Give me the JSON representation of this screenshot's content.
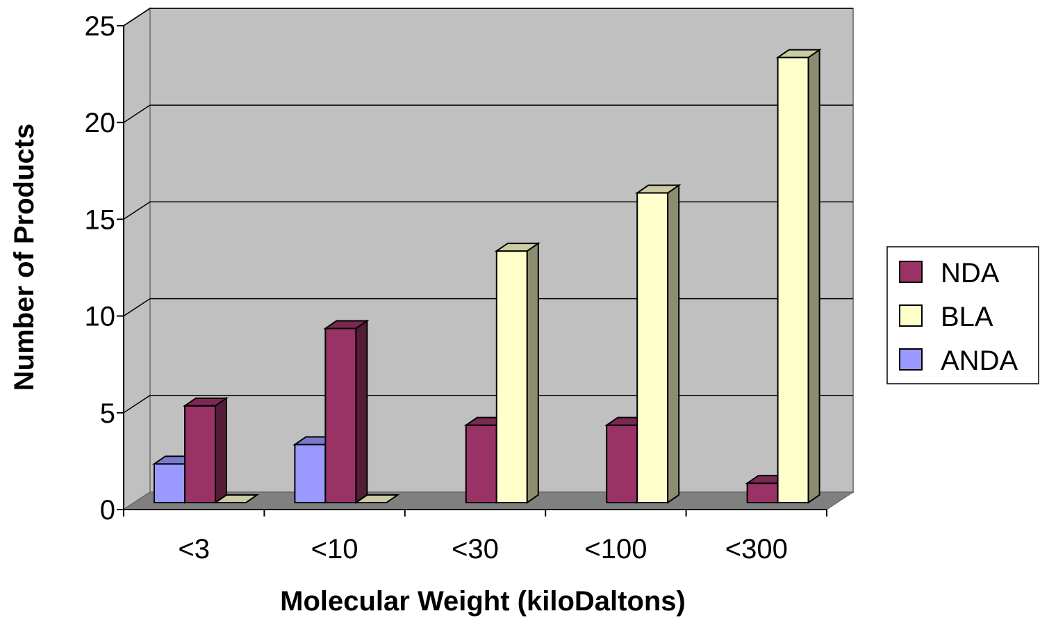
{
  "chart_data": {
    "type": "bar",
    "style": "3d-clustered-column",
    "title": "",
    "xlabel": "Molecular Weight (kiloDaltons)",
    "ylabel": "Number of Products",
    "categories": [
      "<3",
      "<10",
      "<30",
      "<100",
      "<300"
    ],
    "series": [
      {
        "name": "ANDA",
        "values": [
          2,
          3,
          0,
          0,
          0
        ],
        "color": "#9999ff"
      },
      {
        "name": "NDA",
        "values": [
          5,
          9,
          4,
          4,
          1
        ],
        "color": "#993366"
      },
      {
        "name": "BLA",
        "values": [
          0,
          0,
          13,
          16,
          23
        ],
        "color": "#ffffcc"
      }
    ],
    "ylim": [
      0,
      25
    ],
    "yticks": [
      "0",
      "5",
      "10",
      "15",
      "20",
      "25"
    ],
    "grid": true,
    "legend": {
      "position": "right",
      "entries": [
        "NDA",
        "BLA",
        "ANDA"
      ]
    },
    "colors": {
      "plot_back_wall": "#c0c0c0",
      "plot_floor": "#808080"
    }
  }
}
